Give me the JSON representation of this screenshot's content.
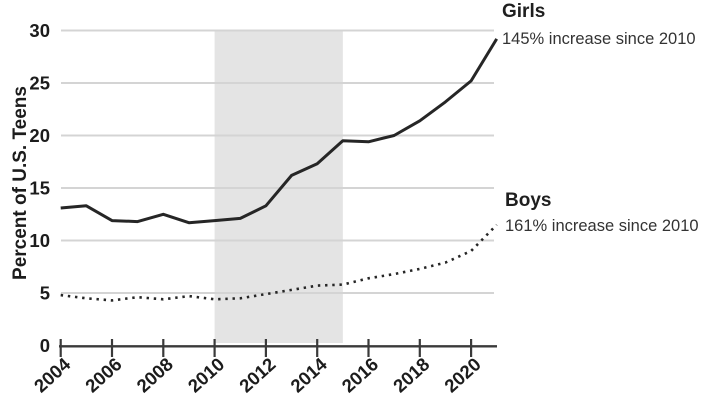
{
  "chart_data": {
    "type": "line",
    "title": "",
    "xlabel": "",
    "ylabel": "Percent of U.S. Teens",
    "x": [
      2004,
      2005,
      2006,
      2007,
      2008,
      2009,
      2010,
      2011,
      2012,
      2013,
      2014,
      2015,
      2016,
      2017,
      2018,
      2019,
      2020,
      2021
    ],
    "series": [
      {
        "name": "Girls",
        "style": "solid",
        "annotation": "145% increase since 2010",
        "values": [
          13.1,
          13.3,
          11.9,
          11.8,
          12.5,
          11.7,
          11.9,
          12.1,
          13.3,
          16.2,
          17.3,
          19.5,
          19.4,
          20.0,
          21.4,
          23.2,
          25.2,
          29.2
        ]
      },
      {
        "name": "Boys",
        "style": "dotted",
        "annotation": "161% increase since 2010",
        "values": [
          4.8,
          4.5,
          4.3,
          4.6,
          4.4,
          4.7,
          4.4,
          4.5,
          4.9,
          5.3,
          5.7,
          5.8,
          6.4,
          6.8,
          7.3,
          7.9,
          9.0,
          11.5
        ]
      }
    ],
    "xticks": [
      2004,
      2006,
      2008,
      2010,
      2012,
      2014,
      2016,
      2018,
      2020
    ],
    "yticks": [
      0,
      5,
      10,
      15,
      20,
      25,
      30
    ],
    "xlim": [
      2004,
      2021
    ],
    "ylim": [
      0,
      30
    ],
    "grid": true,
    "legend_position": "right-annotations",
    "shaded_region": {
      "x_start": 2010,
      "x_end": 2015
    },
    "colors": {
      "line": "#262626",
      "grid": "#d4d4d4",
      "shade": "#e4e4e4",
      "axis": "#3a3a3a",
      "text": "#1c1c1c"
    }
  },
  "y_axis": {
    "title": "Percent of U.S. Teens"
  }
}
